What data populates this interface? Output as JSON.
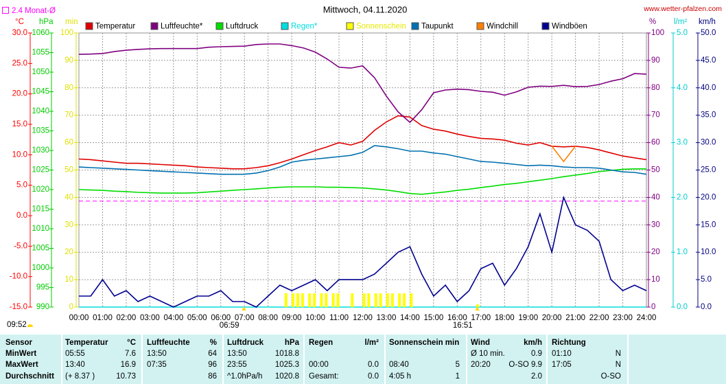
{
  "chart_data": {
    "type": "line",
    "title": "Mittwoch, 04.11.2020",
    "source": "www.wetter-pfalzen.com",
    "reference": {
      "label": "2.4 Monat-Ø",
      "value": 2.4,
      "axis": "°C",
      "color": "#ff00ff"
    },
    "xlim": [
      0,
      24
    ],
    "xticks": [
      {
        "value": 0,
        "label": "00:00"
      },
      {
        "value": 1,
        "label": "01:00"
      },
      {
        "value": 2,
        "label": "02:00"
      },
      {
        "value": 3,
        "label": "03:00"
      },
      {
        "value": 4,
        "label": "04:00"
      },
      {
        "value": 5,
        "label": "05:00"
      },
      {
        "value": 6,
        "label": "06:00"
      },
      {
        "value": 7,
        "label": "07:00"
      },
      {
        "value": 8,
        "label": "08:00"
      },
      {
        "value": 9,
        "label": "09:00"
      },
      {
        "value": 10,
        "label": "10:00"
      },
      {
        "value": 11,
        "label": "11:00"
      },
      {
        "value": 12,
        "label": "12:00"
      },
      {
        "value": 13,
        "label": "13:00"
      },
      {
        "value": 14,
        "label": "14:00"
      },
      {
        "value": 15,
        "label": "15:00"
      },
      {
        "value": 16,
        "label": "16:00"
      },
      {
        "value": 17,
        "label": "17:00"
      },
      {
        "value": 18,
        "label": "18:00"
      },
      {
        "value": 19,
        "label": "19:00"
      },
      {
        "value": 20,
        "label": "20:00"
      },
      {
        "value": 21,
        "label": "21:00"
      },
      {
        "value": 22,
        "label": "22:00"
      },
      {
        "value": 23,
        "label": "23:00"
      },
      {
        "value": 24,
        "label": "24:00"
      }
    ],
    "grid": true,
    "axes": [
      {
        "label": "°C",
        "color": "#ff0000",
        "lim": [
          -15,
          30
        ],
        "ticks": [
          {
            "value": -15,
            "label": "-15.0"
          },
          {
            "value": -10,
            "label": "-10.0"
          },
          {
            "value": -5,
            "label": "-5.0"
          },
          {
            "value": 0,
            "label": "0.0"
          },
          {
            "value": 5,
            "label": "5.0"
          },
          {
            "value": 10,
            "label": "10.0"
          },
          {
            "value": 15,
            "label": "15.0"
          },
          {
            "value": 20,
            "label": "20.0"
          },
          {
            "value": 25,
            "label": "25.0"
          },
          {
            "value": 30,
            "label": "30.0"
          }
        ],
        "grid": false
      },
      {
        "label": "hPa",
        "color": "#00cc00",
        "lim": [
          990,
          1060
        ],
        "ticks": [
          990,
          995,
          1000,
          1005,
          1010,
          1015,
          1020,
          1025,
          1030,
          1035,
          1040,
          1045,
          1050,
          1055,
          1060
        ],
        "grid": false
      },
      {
        "label": "min",
        "color": "#e0e000",
        "lim": [
          0,
          100
        ],
        "ticks": [
          0,
          10,
          20,
          30,
          40,
          50,
          60,
          70,
          80,
          90,
          100
        ],
        "grid": false
      },
      {
        "label": "%",
        "color": "#800080",
        "lim": [
          0,
          100
        ],
        "ticks": [
          0,
          10,
          20,
          30,
          40,
          50,
          60,
          70,
          80,
          90,
          100
        ],
        "grid": true
      },
      {
        "label": "l/m²",
        "color": "#00cccc",
        "lim": [
          0,
          5
        ],
        "ticks": [
          {
            "value": 0,
            "label": "0.0"
          },
          {
            "value": 1,
            "label": "1.0"
          },
          {
            "value": 2,
            "label": "2.0"
          },
          {
            "value": 3,
            "label": "3.0"
          },
          {
            "value": 4,
            "label": "4.0"
          },
          {
            "value": 5,
            "label": "5.0"
          }
        ],
        "grid": false
      },
      {
        "label": "km/h",
        "color": "#000080",
        "lim": [
          0,
          50
        ],
        "ticks": [
          {
            "value": 0,
            "label": "0.0"
          },
          {
            "value": 5,
            "label": "5.0"
          },
          {
            "value": 10,
            "label": "10.0"
          },
          {
            "value": 15,
            "label": "15.0"
          },
          {
            "value": 20,
            "label": "20.0"
          },
          {
            "value": 25,
            "label": "25.0"
          },
          {
            "value": 30,
            "label": "30.0"
          },
          {
            "value": 35,
            "label": "35.0"
          },
          {
            "value": 40,
            "label": "40.0"
          },
          {
            "value": 45,
            "label": "45.0"
          },
          {
            "value": 50,
            "label": "50.0"
          }
        ],
        "grid": false
      }
    ],
    "x": [
      0,
      0.5,
      1,
      1.5,
      2,
      2.5,
      3,
      3.5,
      4,
      4.5,
      5,
      5.5,
      6,
      6.5,
      7,
      7.5,
      8,
      8.5,
      9,
      9.5,
      10,
      10.5,
      11,
      11.5,
      12,
      12.5,
      13,
      13.5,
      14,
      14.5,
      15,
      15.5,
      16,
      16.5,
      17,
      17.5,
      18,
      18.5,
      19,
      19.5,
      20,
      20.5,
      21,
      21.5,
      22,
      22.5,
      23,
      23.5,
      24
    ],
    "series": [
      {
        "name": "Temperatur",
        "color": "#e00000",
        "axis": "°C",
        "values": [
          9.3,
          9.2,
          9.0,
          8.8,
          8.6,
          8.6,
          8.5,
          8.4,
          8.3,
          8.2,
          8.0,
          7.9,
          7.8,
          7.7,
          7.7,
          7.9,
          8.2,
          8.7,
          9.3,
          10.0,
          10.7,
          11.3,
          12.0,
          11.6,
          12.2,
          14.0,
          15.4,
          16.4,
          16.2,
          14.8,
          14.2,
          13.9,
          13.4,
          13.0,
          12.7,
          12.6,
          12.4,
          11.9,
          11.6,
          12.0,
          11.4,
          11.3,
          11.4,
          11.2,
          10.8,
          10.3,
          9.8,
          9.5,
          9.2
        ]
      },
      {
        "name": "Luftfeuchte*",
        "color": "#800080",
        "axis": "%",
        "values": [
          92.2,
          92.3,
          92.5,
          93.2,
          93.7,
          94.0,
          94.2,
          94.3,
          94.3,
          94.3,
          94.3,
          94.8,
          95.0,
          95.1,
          95.2,
          95.8,
          96.0,
          96.0,
          95.4,
          94.5,
          93.0,
          90.5,
          87.5,
          87.2,
          88.0,
          83.7,
          77.0,
          71.2,
          67.4,
          72.0,
          78.2,
          79.2,
          79.5,
          79.3,
          78.7,
          78.4,
          77.3,
          78.5,
          80.2,
          80.6,
          80.5,
          80.9,
          80.4,
          80.5,
          81.2,
          82.4,
          83.3,
          85.2,
          85.0
        ]
      },
      {
        "name": "Luftdruck",
        "color": "#00dd00",
        "axis": "hPa",
        "values": [
          1020.0,
          1019.9,
          1019.8,
          1019.6,
          1019.5,
          1019.3,
          1019.2,
          1019.1,
          1019.1,
          1019.1,
          1019.2,
          1019.4,
          1019.6,
          1019.8,
          1020.0,
          1020.2,
          1020.4,
          1020.6,
          1020.7,
          1020.7,
          1020.7,
          1020.6,
          1020.6,
          1020.5,
          1020.4,
          1020.2,
          1019.9,
          1019.5,
          1019.0,
          1018.8,
          1019.1,
          1019.4,
          1019.8,
          1020.1,
          1020.5,
          1020.9,
          1021.3,
          1021.6,
          1022.0,
          1022.4,
          1022.8,
          1023.3,
          1023.7,
          1024.1,
          1024.6,
          1024.9,
          1025.2,
          1025.3,
          1025.3
        ]
      },
      {
        "name": "Regen*",
        "color": "#00dddd",
        "legend_color": "#00dddd",
        "axis": "l/m²",
        "values": [
          0,
          0,
          0,
          0,
          0,
          0,
          0,
          0,
          0,
          0,
          0,
          0,
          0,
          0,
          0,
          0,
          0,
          0,
          0,
          0,
          0,
          0,
          0,
          0,
          0,
          0,
          0,
          0,
          0,
          0,
          0,
          0,
          0,
          0,
          0,
          0,
          0,
          0,
          0,
          0,
          0,
          0,
          0,
          0,
          0,
          0,
          0,
          0,
          0
        ]
      },
      {
        "name": "Sonnenschein",
        "color": "#ffff00",
        "legend_color": "#e8e800",
        "axis": "min",
        "type": "bar",
        "x": [
          8.7,
          9.0,
          9.2,
          9.4,
          9.7,
          9.9,
          10.2,
          10.4,
          10.7,
          10.9,
          11.5,
          12.0,
          12.2,
          12.5,
          12.7,
          13.0,
          13.2,
          13.5,
          13.7,
          14.0,
          16.8
        ],
        "values": [
          5,
          5,
          5,
          5,
          5,
          5,
          5,
          5,
          5,
          5,
          5,
          5,
          5,
          5,
          5,
          5,
          5,
          5,
          5,
          5,
          1
        ]
      },
      {
        "name": "Taupunkt",
        "color": "#0070b0",
        "axis": "°C",
        "values": [
          8.0,
          7.9,
          7.8,
          7.7,
          7.6,
          7.5,
          7.4,
          7.3,
          7.2,
          7.1,
          7.0,
          6.9,
          6.8,
          6.8,
          6.8,
          7.0,
          7.4,
          8.0,
          8.8,
          9.1,
          9.3,
          9.5,
          9.7,
          9.9,
          10.4,
          11.5,
          11.3,
          11.0,
          10.6,
          10.6,
          10.3,
          10.1,
          9.7,
          9.3,
          8.9,
          8.8,
          8.6,
          8.4,
          8.2,
          8.3,
          8.2,
          8.0,
          7.9,
          7.9,
          7.8,
          7.5,
          7.2,
          7.1,
          6.8
        ]
      },
      {
        "name": "Windchill",
        "color": "#ff8000",
        "axis": "°C",
        "values": [
          null,
          null,
          null,
          null,
          null,
          null,
          null,
          null,
          null,
          null,
          null,
          null,
          null,
          null,
          null,
          null,
          null,
          null,
          null,
          null,
          null,
          null,
          null,
          null,
          null,
          null,
          null,
          null,
          null,
          null,
          null,
          null,
          null,
          null,
          null,
          null,
          null,
          null,
          null,
          null,
          11.4,
          8.9,
          11.4,
          null,
          null,
          null,
          null,
          null,
          null
        ]
      },
      {
        "name": "Windböen",
        "color": "#000090",
        "axis": "km/h",
        "values": [
          2,
          2,
          5,
          2,
          3,
          1,
          2,
          1,
          0,
          1,
          2,
          2,
          3,
          1,
          1,
          0,
          2,
          4,
          3,
          4,
          5,
          3,
          5,
          5,
          5,
          6,
          8,
          10,
          11,
          6,
          2,
          4,
          1,
          3,
          7,
          8,
          4,
          7,
          11,
          17,
          10,
          20,
          15,
          14,
          12,
          5,
          3,
          4,
          3
        ]
      }
    ],
    "annotations": [
      {
        "text": "09:52"
      },
      {
        "text": "06:59",
        "x": 6.98
      },
      {
        "text": "16:51",
        "x": 16.85
      }
    ]
  },
  "table": {
    "header": [
      "Sensor",
      "Temperatur",
      "°C",
      "Luftfeuchte",
      "%",
      "Luftdruck",
      "hPa",
      "Regen",
      "l/m²",
      "Sonnenschein min",
      null,
      "Wind",
      "km/h",
      "Richtung",
      null
    ],
    "rows": [
      [
        "MinWert",
        "05:55",
        "7.6",
        "13:50",
        "64",
        "13:50",
        "1018.8",
        null,
        null,
        null,
        null,
        "Ø 10 min.",
        "0.9",
        "01:10",
        "N"
      ],
      [
        "MaxWert",
        "13:40",
        "16.9",
        "07:35",
        "96",
        "23:55",
        "1025.3",
        "00:00",
        "0.0",
        "08:40",
        "5",
        "20:20",
        "O-SO 9.9",
        "17:05",
        "N"
      ],
      [
        "Durchschnitt",
        "(+ 8.37 )",
        "10.73",
        null,
        "86",
        "^1.0hPa/h",
        "1020.8",
        "Gesamt:",
        "0.0",
        "4:05 h",
        "1",
        null,
        "2.0",
        null,
        "O-SO"
      ]
    ]
  }
}
